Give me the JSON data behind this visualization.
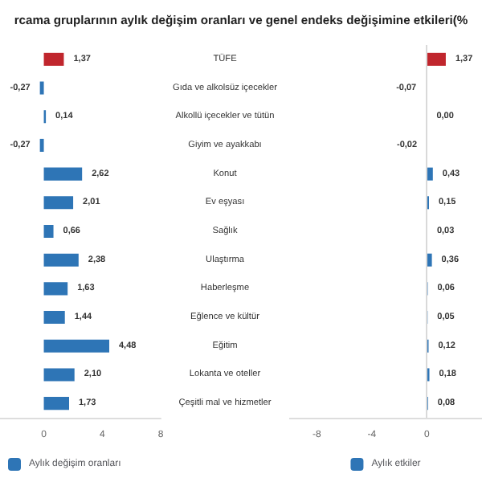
{
  "chart_data": [
    {
      "type": "bar",
      "orientation": "horizontal",
      "title": "rcama gruplarının aylık değişim oranları ve genel endeks değişimine etkileri(%",
      "categories": [
        "TÜFE",
        "Gıda ve alkolsüz içecekler",
        "Alkollü içecekler ve tütün",
        "Giyim ve ayakkabı",
        "Konut",
        "Ev eşyası",
        "Sağlık",
        "Ulaştırma",
        "Haberleşme",
        "Eğlence ve kültür",
        "Eğitim",
        "Lokanta ve oteller",
        "Çeşitli mal ve hizmetler"
      ],
      "series": [
        {
          "name": "Aylık değişim oranları",
          "color": "#2e75b6",
          "colors": [
            "#c0262d",
            "#2e75b6",
            "#2e75b6",
            "#2e75b6",
            "#2e75b6",
            "#2e75b6",
            "#2e75b6",
            "#2e75b6",
            "#2e75b6",
            "#2e75b6",
            "#2e75b6",
            "#2e75b6",
            "#2e75b6"
          ],
          "values": [
            1.37,
            -0.27,
            0.14,
            -0.27,
            2.62,
            2.01,
            0.66,
            2.38,
            1.63,
            1.44,
            4.48,
            2.1,
            1.73
          ],
          "value_labels": [
            "1,37",
            "-0,27",
            "0,14",
            "-0,27",
            "2,62",
            "2,01",
            "0,66",
            "2,38",
            "1,63",
            "1,44",
            "4,48",
            "2,10",
            "1,73"
          ]
        }
      ],
      "xlim": [
        -3,
        8
      ],
      "xticks": [
        0,
        4,
        8
      ],
      "grid": false,
      "legend": "bottom left"
    },
    {
      "type": "bar",
      "orientation": "horizontal",
      "categories": [
        null,
        null,
        null,
        null,
        null,
        null,
        null,
        null,
        null,
        null,
        null,
        null,
        null
      ],
      "ref_lines": [
        {
          "axis": "x",
          "value": 0,
          "color": "#d9d9d9"
        }
      ],
      "series": [
        {
          "name": "Aylık etkiler",
          "color": "#2e75b6",
          "colors": [
            "#c0262d",
            "#2e75b6",
            "#2e75b6",
            "#2e75b6",
            "#2e75b6",
            "#2e75b6",
            "#2e75b6",
            "#2e75b6",
            "#2e75b6",
            "#2e75b6",
            "#2e75b6",
            "#2e75b6",
            "#2e75b6"
          ],
          "values": [
            1.37,
            -0.07,
            0.0,
            -0.02,
            0.43,
            0.15,
            0.03,
            0.36,
            0.06,
            0.05,
            0.12,
            0.18,
            0.08
          ],
          "value_labels": [
            "1,37",
            "-0,07",
            "0,00",
            "-0,02",
            "0,43",
            "0,15",
            "0,03",
            "0,36",
            "0,06",
            "0,05",
            "0,12",
            "0,18",
            "0,08"
          ]
        }
      ],
      "xlim": [
        -10,
        4
      ],
      "xticks": [
        -8,
        -4,
        0
      ],
      "grid": false,
      "legend": "bottom",
      "tick_labels": "x"
    }
  ]
}
